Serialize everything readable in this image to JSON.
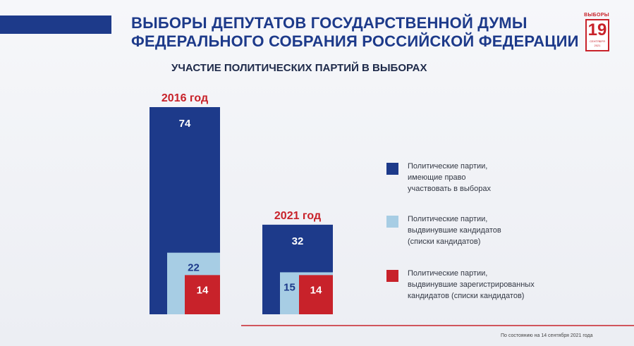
{
  "header": {
    "title_lines": [
      "ВЫБОРЫ ДЕПУТАТОВ ГОСУДАРСТВЕННОЙ ДУМЫ",
      "ФЕДЕРАЛЬНОГО СОБРАНИЯ РОССИЙСКОЙ ФЕДЕРАЦИИ"
    ],
    "subtitle": "УЧАСТИЕ ПОЛИТИЧЕСКИХ ПАРТИЙ В ВЫБОРАХ"
  },
  "logo": {
    "top": "ВЫБОРЫ",
    "number": "19",
    "month": "СЕНТЯБРЯ",
    "year": "2021"
  },
  "colors": {
    "dark_blue": "#1d3a8a",
    "light_blue": "#a7cde4",
    "red": "#c8222a",
    "group_label": "#c8222a"
  },
  "chart_data": {
    "type": "bar",
    "categories": [
      "2016 год",
      "2021 год"
    ],
    "series": [
      {
        "legend_lines": [
          "Политические партии,",
          "имеющие право",
          "участвовать в выборах"
        ],
        "color": "#1d3a8a",
        "values": [
          74,
          32
        ]
      },
      {
        "legend_lines": [
          "Политические партии,",
          "выдвинувшие кандидатов",
          "(списки кандидатов)"
        ],
        "color": "#a7cde4",
        "values": [
          22,
          15
        ]
      },
      {
        "legend_lines": [
          "Политические партии,",
          "выдвинувшие зарегистрированных",
          "кандидатов (списки кандидатов)"
        ],
        "color": "#c8222a",
        "values": [
          14,
          14
        ]
      }
    ],
    "legend_position": "right",
    "grid": false
  },
  "footnote": "По состоянию на 14 сентября 2021 года"
}
